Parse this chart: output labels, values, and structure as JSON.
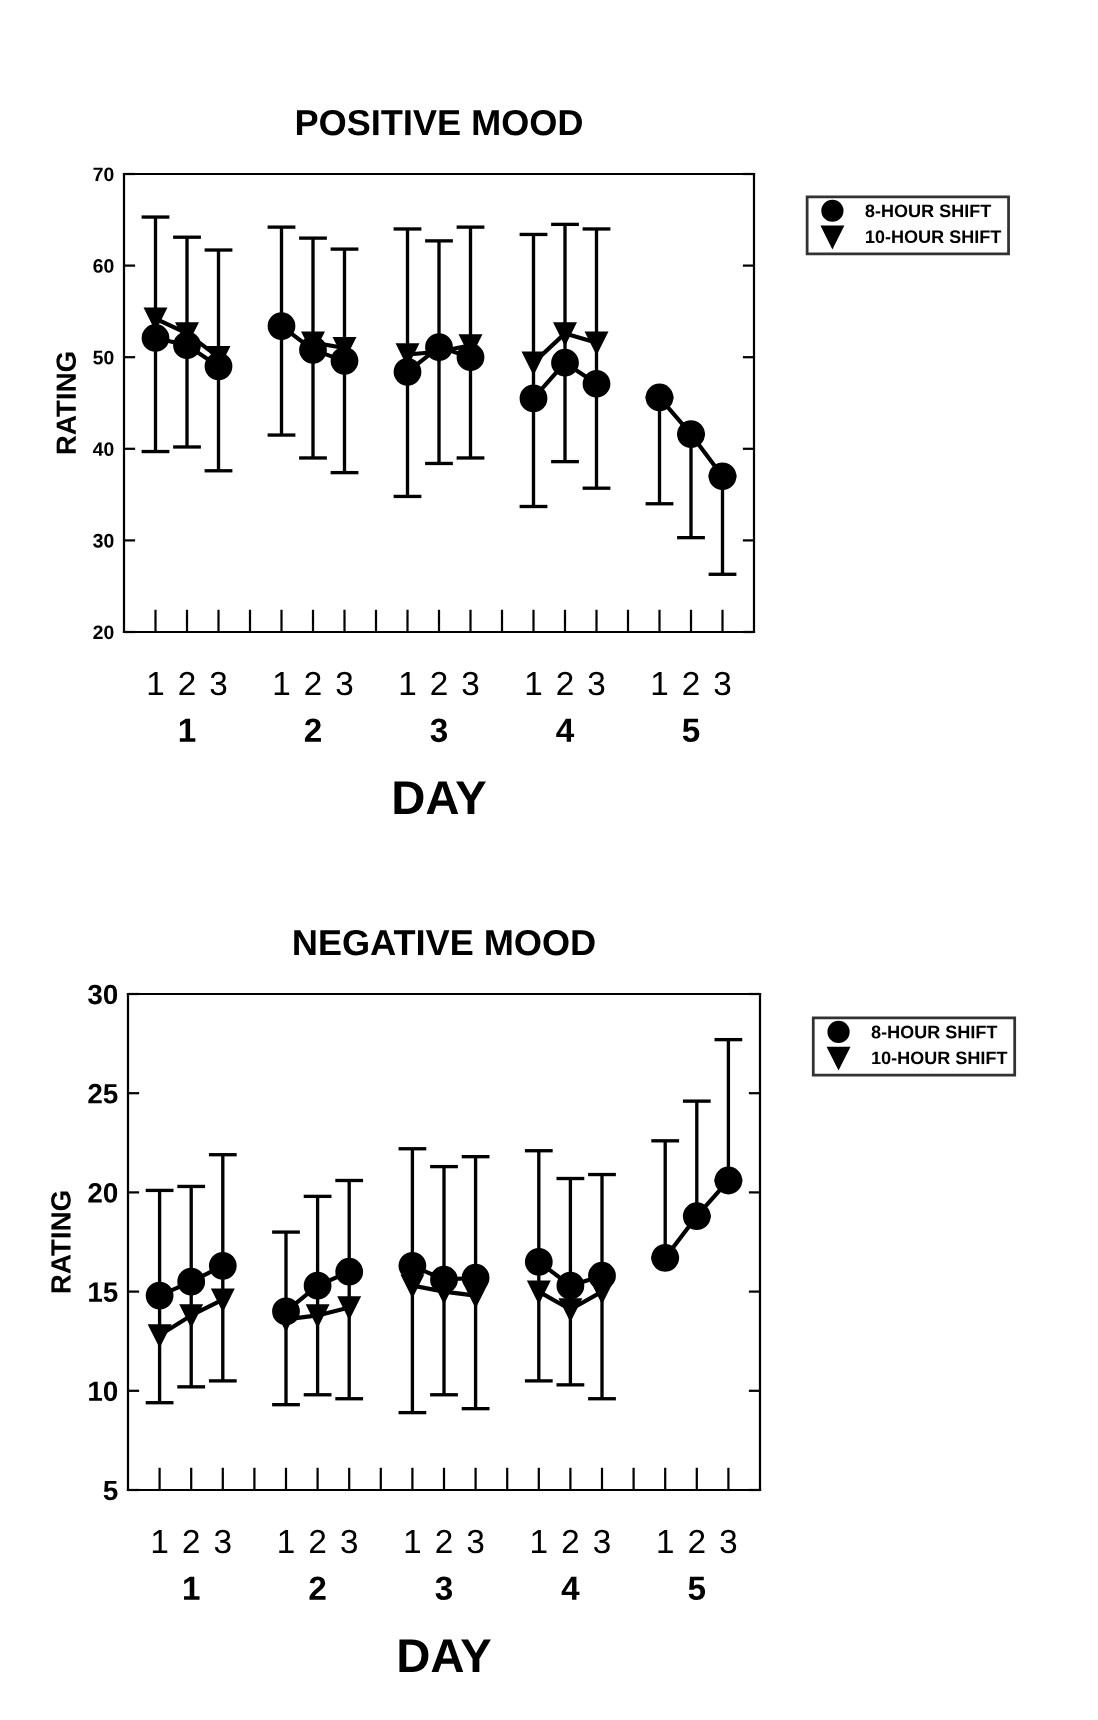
{
  "chart_data": [
    {
      "type": "line",
      "title": "POSITIVE MOOD",
      "xlabel": "DAY",
      "ylabel": "RATING",
      "categories": [
        "1",
        "2",
        "3",
        null,
        "1",
        "2",
        "3",
        null,
        "1",
        "2",
        "3",
        null,
        "1",
        "2",
        "3",
        null,
        "1",
        "2",
        "3"
      ],
      "annotations": [
        "1",
        "2",
        "3",
        "4",
        "5"
      ],
      "ylim": [
        20,
        70
      ],
      "yticks": [
        20,
        30,
        40,
        50,
        60,
        70
      ],
      "grid": false,
      "legend": "right",
      "series": [
        {
          "name": "8-HOUR SHIFT",
          "color": "#000000",
          "marker": "circle",
          "values": [
            52.1,
            51.3,
            49.0,
            null,
            53.4,
            50.8,
            49.6,
            null,
            48.4,
            51.1,
            50.0,
            null,
            45.5,
            49.4,
            47.1,
            null,
            45.6,
            41.6,
            37.0
          ],
          "errors": [
            [
              39.7,
              65.3
            ],
            [
              40.2,
              63.1
            ],
            [
              37.6,
              61.7
            ],
            null,
            [
              41.5,
              64.2
            ],
            [
              39.0,
              63.0
            ],
            [
              37.4,
              61.8
            ],
            null,
            [
              34.8,
              64.0
            ],
            [
              38.4,
              62.7
            ],
            [
              39.0,
              64.2
            ],
            null,
            [
              33.7,
              63.4
            ],
            [
              38.6,
              64.5
            ],
            [
              35.7,
              64.0
            ],
            null,
            [
              34.0,
              45.6
            ],
            [
              30.3,
              41.6
            ],
            [
              26.3,
              37.0
            ]
          ]
        },
        {
          "name": "10-HOUR SHIFT",
          "color": "#000000",
          "marker": "triangle",
          "values": [
            54.2,
            52.6,
            50.0,
            null,
            null,
            51.6,
            51.0,
            null,
            50.3,
            50.6,
            51.3,
            null,
            49.4,
            52.6,
            51.6,
            null,
            null,
            null,
            null
          ]
        }
      ]
    },
    {
      "type": "line",
      "title": "NEGATIVE MOOD",
      "xlabel": "DAY",
      "ylabel": "RATING",
      "categories": [
        "1",
        "2",
        "3",
        null,
        "1",
        "2",
        "3",
        null,
        "1",
        "2",
        "3",
        null,
        "1",
        "2",
        "3",
        null,
        "1",
        "2",
        "3"
      ],
      "annotations": [
        "1",
        "2",
        "3",
        "4",
        "5"
      ],
      "ylim": [
        5,
        30
      ],
      "yticks": [
        5,
        10,
        15,
        20,
        25,
        30
      ],
      "grid": false,
      "legend": "right",
      "series": [
        {
          "name": "8-HOUR SHIFT",
          "color": "#000000",
          "marker": "circle",
          "values": [
            14.8,
            15.5,
            16.3,
            null,
            14.0,
            15.3,
            16.0,
            null,
            16.3,
            15.6,
            15.7,
            null,
            16.5,
            15.3,
            15.8,
            null,
            16.7,
            18.8,
            20.6
          ],
          "errors": [
            [
              9.4,
              20.1
            ],
            [
              10.2,
              20.3
            ],
            [
              10.5,
              21.9
            ],
            null,
            [
              9.3,
              18.0
            ],
            [
              9.8,
              19.8
            ],
            [
              9.6,
              20.6
            ],
            null,
            [
              8.9,
              22.2
            ],
            [
              9.8,
              21.3
            ],
            [
              9.1,
              21.8
            ],
            null,
            [
              10.5,
              22.1
            ],
            [
              10.3,
              20.7
            ],
            [
              9.6,
              20.9
            ],
            null,
            [
              16.7,
              22.6
            ],
            [
              18.8,
              24.6
            ],
            [
              20.6,
              27.7
            ]
          ]
        },
        {
          "name": "10-HOUR SHIFT",
          "color": "#000000",
          "marker": "triangle",
          "values": [
            12.8,
            13.8,
            14.6,
            null,
            13.6,
            13.8,
            14.2,
            null,
            15.3,
            15.0,
            14.8,
            null,
            15.0,
            14.1,
            15.0,
            null,
            null,
            null,
            null
          ]
        }
      ]
    }
  ]
}
